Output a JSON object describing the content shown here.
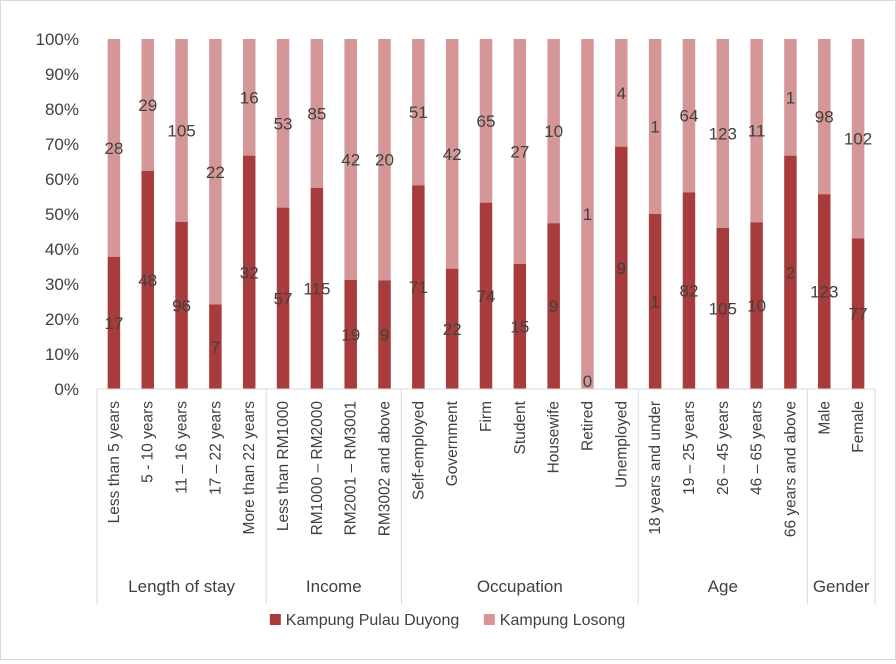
{
  "chart_data": {
    "type": "bar",
    "stacking": "percent",
    "title": "",
    "xlabel": "",
    "ylabel": "",
    "ylim": [
      0,
      100
    ],
    "y_ticks": [
      "0%",
      "10%",
      "20%",
      "30%",
      "40%",
      "50%",
      "60%",
      "70%",
      "80%",
      "90%",
      "100%"
    ],
    "grid": false,
    "legend_position": "bottom",
    "groups": [
      {
        "name": "Length of stay",
        "categories": [
          "Less than 5 years",
          "5 - 10 years",
          "11 – 16 years",
          "17 – 22 years",
          "More than 22 years"
        ]
      },
      {
        "name": "Income",
        "categories": [
          "Less than RM1000",
          "RM1000 – RM2000",
          "RM2001 – RM3001",
          "RM3002 and above"
        ]
      },
      {
        "name": "Occupation",
        "categories": [
          "Self-employed",
          "Government",
          "Firm",
          "Student",
          "Housewife",
          "Retired",
          "Unemployed"
        ]
      },
      {
        "name": "Age",
        "categories": [
          "18 years and under",
          "19 – 25 years",
          "26 – 45 years",
          "46 – 65 years",
          "66 years and above"
        ]
      },
      {
        "name": "Gender",
        "categories": [
          "Male",
          "Female"
        ]
      }
    ],
    "series": [
      {
        "name": "Kampung Pulau Duyong",
        "color": "#a83c3c",
        "values": [
          17,
          48,
          96,
          7,
          32,
          57,
          115,
          19,
          9,
          71,
          22,
          74,
          15,
          9,
          0,
          9,
          1,
          82,
          105,
          10,
          2,
          123,
          77
        ],
        "labels": [
          "17",
          "48",
          "96",
          "7",
          "32",
          "57",
          "115",
          "19",
          "9",
          "71",
          "22",
          "74",
          "15",
          "9",
          "0",
          "9",
          "1",
          "82",
          "105",
          "10",
          "2",
          "123",
          "77"
        ]
      },
      {
        "name": "Kampung Losong",
        "color": "#d49696",
        "values": [
          28,
          29,
          105,
          22,
          16,
          53,
          85,
          42,
          20,
          51,
          42,
          65,
          27,
          10,
          1,
          4,
          1,
          64,
          123,
          11,
          1,
          98,
          102
        ],
        "labels": [
          "28",
          "29",
          "105",
          "22",
          "16",
          "53",
          "85",
          "42",
          "20",
          "51",
          "42",
          "65",
          "27",
          "10",
          "1",
          "4",
          "1",
          "64",
          "123",
          "11",
          "1",
          "98",
          "102"
        ]
      }
    ]
  }
}
